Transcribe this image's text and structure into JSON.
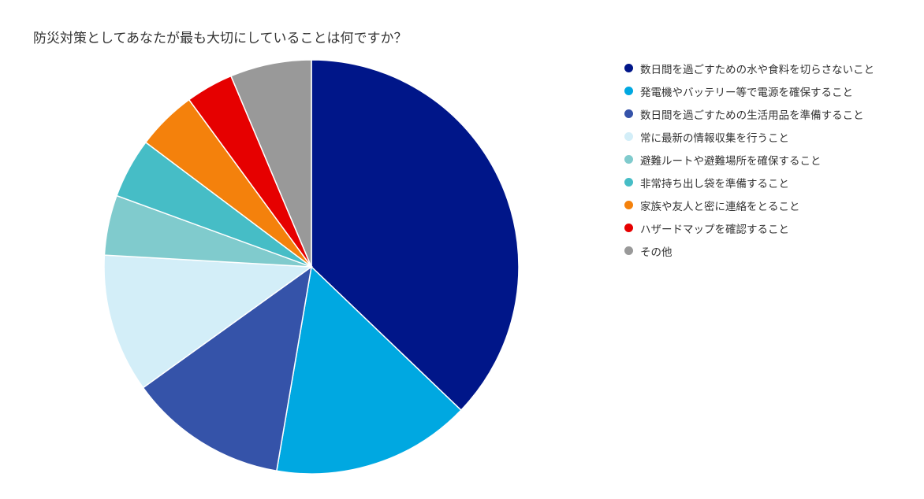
{
  "chart_data": {
    "type": "pie",
    "title": "防災対策としてあなたが最も大切にしていることは何ですか？",
    "legend_position": "right",
    "categories": [
      "数日間を過ごすための水や食料を切らさないこと",
      "発電機やバッテリー等で電源を確保すること",
      "数日間を過ごすための生活用品を準備すること",
      "常に最新の情報収集を行うこと",
      "避難ルートや避難場所を確保すること",
      "非常持ち出し袋を準備すること",
      "家族や友人と密に連絡をとること",
      "ハザードマップを確認すること",
      "その他"
    ],
    "values": [
      38.1,
      15.9,
      12.7,
      11.1,
      4.8,
      4.8,
      4.8,
      3.8,
      6.5
    ],
    "colors": [
      "#001689",
      "#00a8e1",
      "#3553a9",
      "#d3eef8",
      "#80cbcd",
      "#46bdc6",
      "#f4810c",
      "#e60000",
      "#999999"
    ]
  }
}
